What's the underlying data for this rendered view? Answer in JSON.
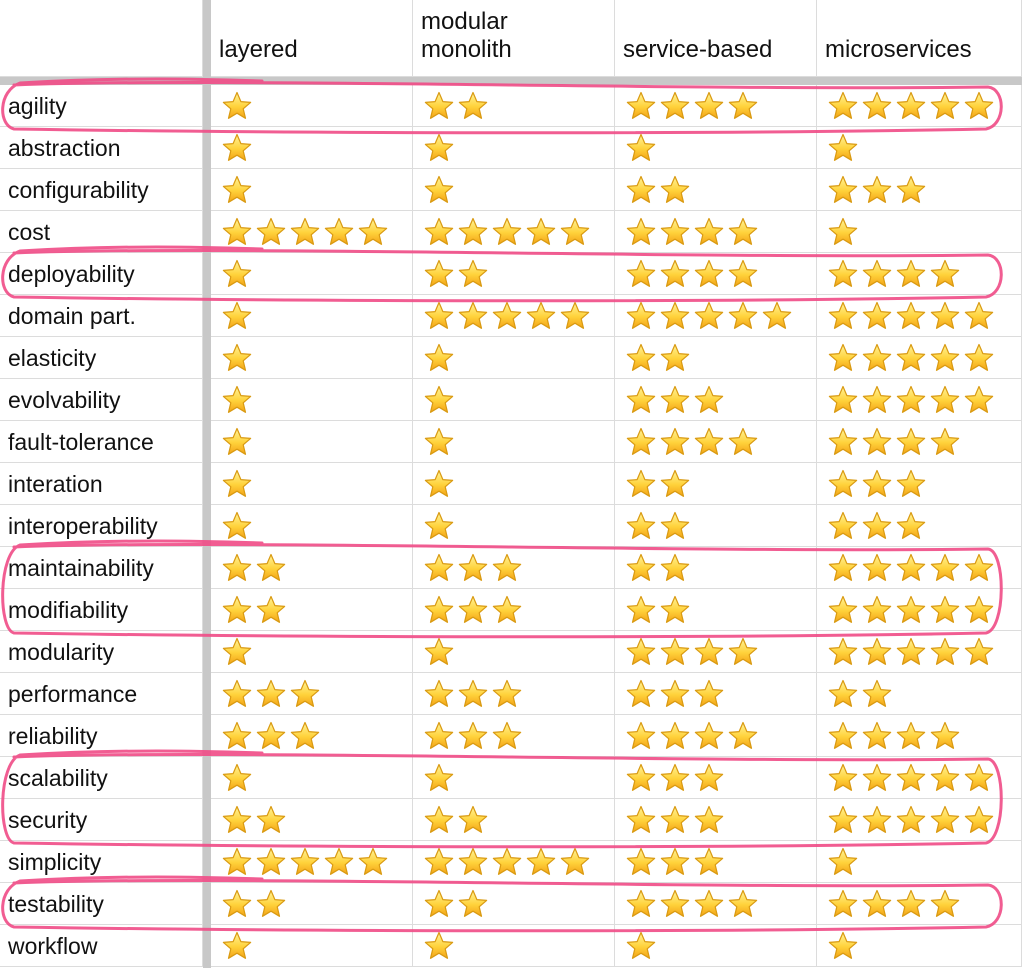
{
  "columns": [
    "",
    "layered",
    "modular monolith",
    "service-based",
    "microservices"
  ],
  "icon": "star-icon",
  "accent_color": "#f04b86",
  "rows": [
    {
      "label": "agility",
      "ratings": [
        1,
        2,
        4,
        5
      ],
      "highlighted": true
    },
    {
      "label": "abstraction",
      "ratings": [
        1,
        1,
        1,
        1
      ],
      "highlighted": false
    },
    {
      "label": "configurability",
      "ratings": [
        1,
        1,
        2,
        3
      ],
      "highlighted": false
    },
    {
      "label": "cost",
      "ratings": [
        5,
        5,
        4,
        1
      ],
      "highlighted": false
    },
    {
      "label": "deployability",
      "ratings": [
        1,
        2,
        4,
        4
      ],
      "highlighted": true
    },
    {
      "label": "domain part.",
      "ratings": [
        1,
        5,
        5,
        5
      ],
      "highlighted": false
    },
    {
      "label": "elasticity",
      "ratings": [
        1,
        1,
        2,
        5
      ],
      "highlighted": false
    },
    {
      "label": "evolvability",
      "ratings": [
        1,
        1,
        3,
        5
      ],
      "highlighted": false
    },
    {
      "label": "fault-tolerance",
      "ratings": [
        1,
        1,
        4,
        4
      ],
      "highlighted": false
    },
    {
      "label": "interation",
      "ratings": [
        1,
        1,
        2,
        3
      ],
      "highlighted": false
    },
    {
      "label": "interoperability",
      "ratings": [
        1,
        1,
        2,
        3
      ],
      "highlighted": false
    },
    {
      "label": "maintainability",
      "ratings": [
        2,
        3,
        2,
        5
      ],
      "highlighted": true
    },
    {
      "label": "modifiability",
      "ratings": [
        2,
        3,
        2,
        5
      ],
      "highlighted": true
    },
    {
      "label": "modularity",
      "ratings": [
        1,
        1,
        4,
        5
      ],
      "highlighted": false
    },
    {
      "label": "performance",
      "ratings": [
        3,
        3,
        3,
        2
      ],
      "highlighted": false
    },
    {
      "label": "reliability",
      "ratings": [
        3,
        3,
        4,
        4
      ],
      "highlighted": false
    },
    {
      "label": "scalability",
      "ratings": [
        1,
        1,
        3,
        5
      ],
      "highlighted": true
    },
    {
      "label": "security",
      "ratings": [
        2,
        2,
        3,
        5
      ],
      "highlighted": true
    },
    {
      "label": "simplicity",
      "ratings": [
        5,
        5,
        3,
        1
      ],
      "highlighted": false
    },
    {
      "label": "testability",
      "ratings": [
        2,
        2,
        4,
        4
      ],
      "highlighted": true
    },
    {
      "label": "workflow",
      "ratings": [
        1,
        1,
        1,
        1
      ],
      "highlighted": false
    }
  ]
}
